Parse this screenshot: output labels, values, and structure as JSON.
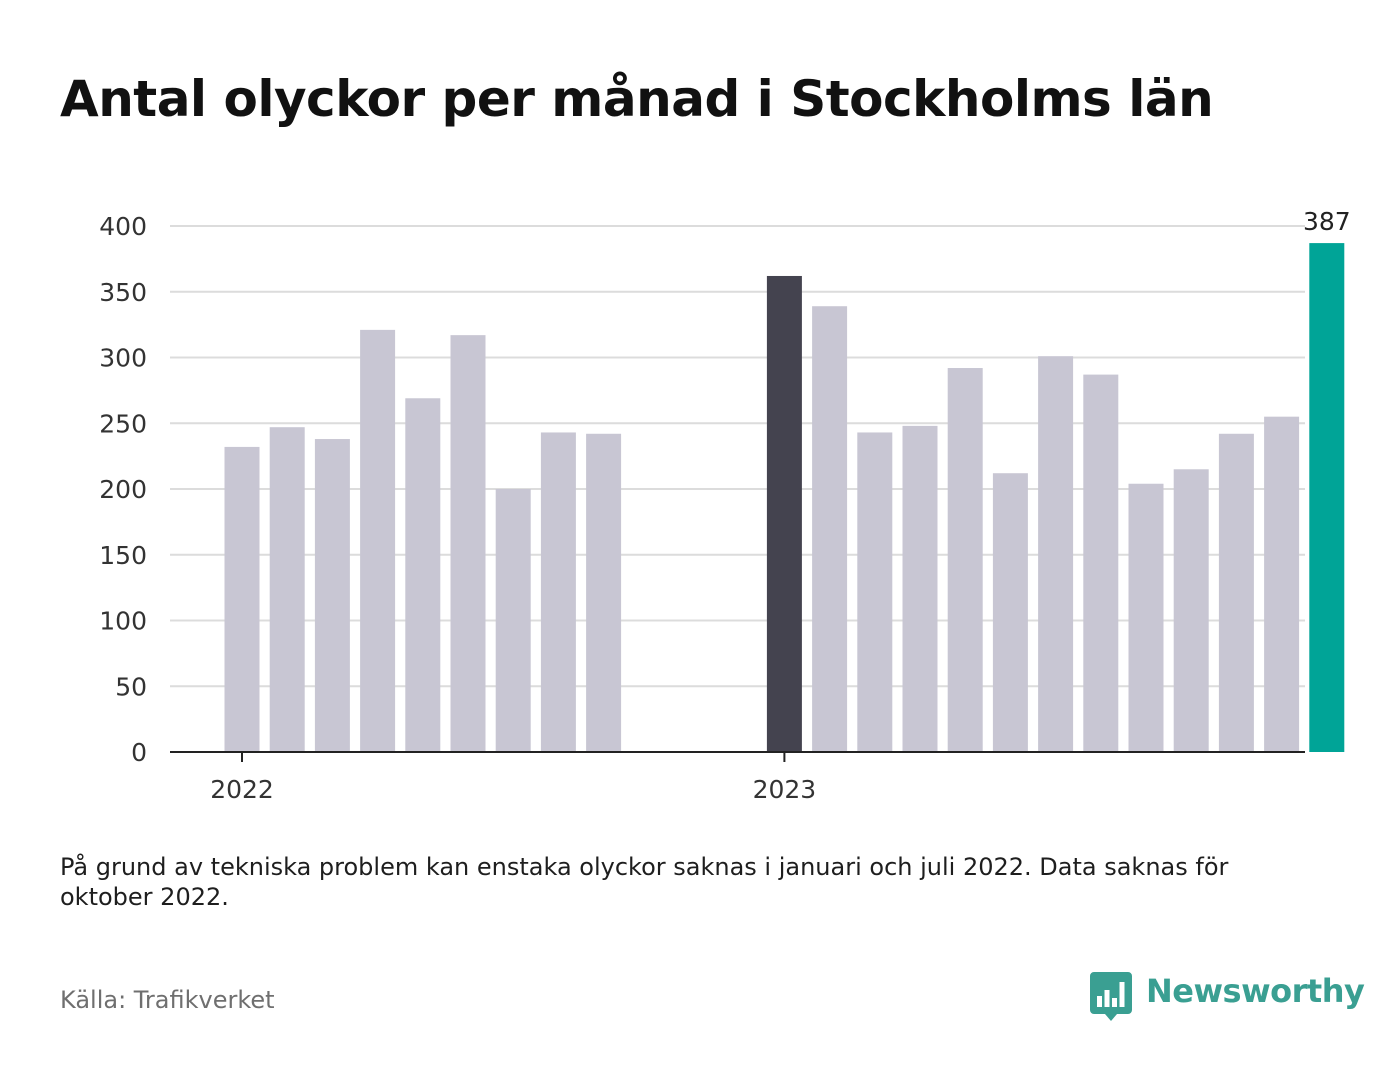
{
  "title": "Antal olyckor per månad i Stockholms län",
  "note": "På grund av tekniska problem kan enstaka olyckor saknas i januari och juli 2022. Data saknas för oktober 2022.",
  "source": "Källa: Trafikverket",
  "brand": {
    "name": "Newsworthy",
    "logo_icon": "bar-chart-speech-bubble-icon"
  },
  "colors": {
    "default_bar": "#c8c6d3",
    "january_bar": "#44434f",
    "latest_bar": "#00a497",
    "grid": "#dcdcdc",
    "axis": "#222222",
    "brand": "#3a9f92"
  },
  "chart_data": {
    "type": "bar",
    "title": "Antal olyckor per månad i Stockholms län",
    "xlabel": "",
    "ylabel": "",
    "ylim": [
      0,
      400
    ],
    "yticks": [
      0,
      50,
      100,
      150,
      200,
      250,
      300,
      350,
      400
    ],
    "grid": true,
    "x_tick_labels": [
      {
        "label": "2022",
        "at": "2022-01"
      },
      {
        "label": "2023",
        "at": "2023-01"
      }
    ],
    "categories": [
      "2022-01",
      "2022-02",
      "2022-03",
      "2022-04",
      "2022-05",
      "2022-06",
      "2022-07",
      "2022-08",
      "2022-09",
      "2022-10",
      "2022-11",
      "2022-12",
      "2023-01",
      "2023-02",
      "2023-03",
      "2023-04",
      "2023-05",
      "2023-06",
      "2023-07",
      "2023-08",
      "2023-09",
      "2023-10",
      "2023-11",
      "2023-12",
      "2024-01"
    ],
    "values": [
      232,
      247,
      238,
      321,
      269,
      317,
      200,
      243,
      242,
      null,
      null,
      null,
      362,
      339,
      243,
      248,
      292,
      212,
      301,
      287,
      204,
      215,
      242,
      255,
      387
    ],
    "highlights": [
      {
        "category": "2023-01",
        "color": "#44434f"
      },
      {
        "category": "2024-01",
        "color": "#00a497"
      }
    ],
    "data_labels": [
      {
        "category": "2024-01",
        "label": "387"
      }
    ]
  }
}
